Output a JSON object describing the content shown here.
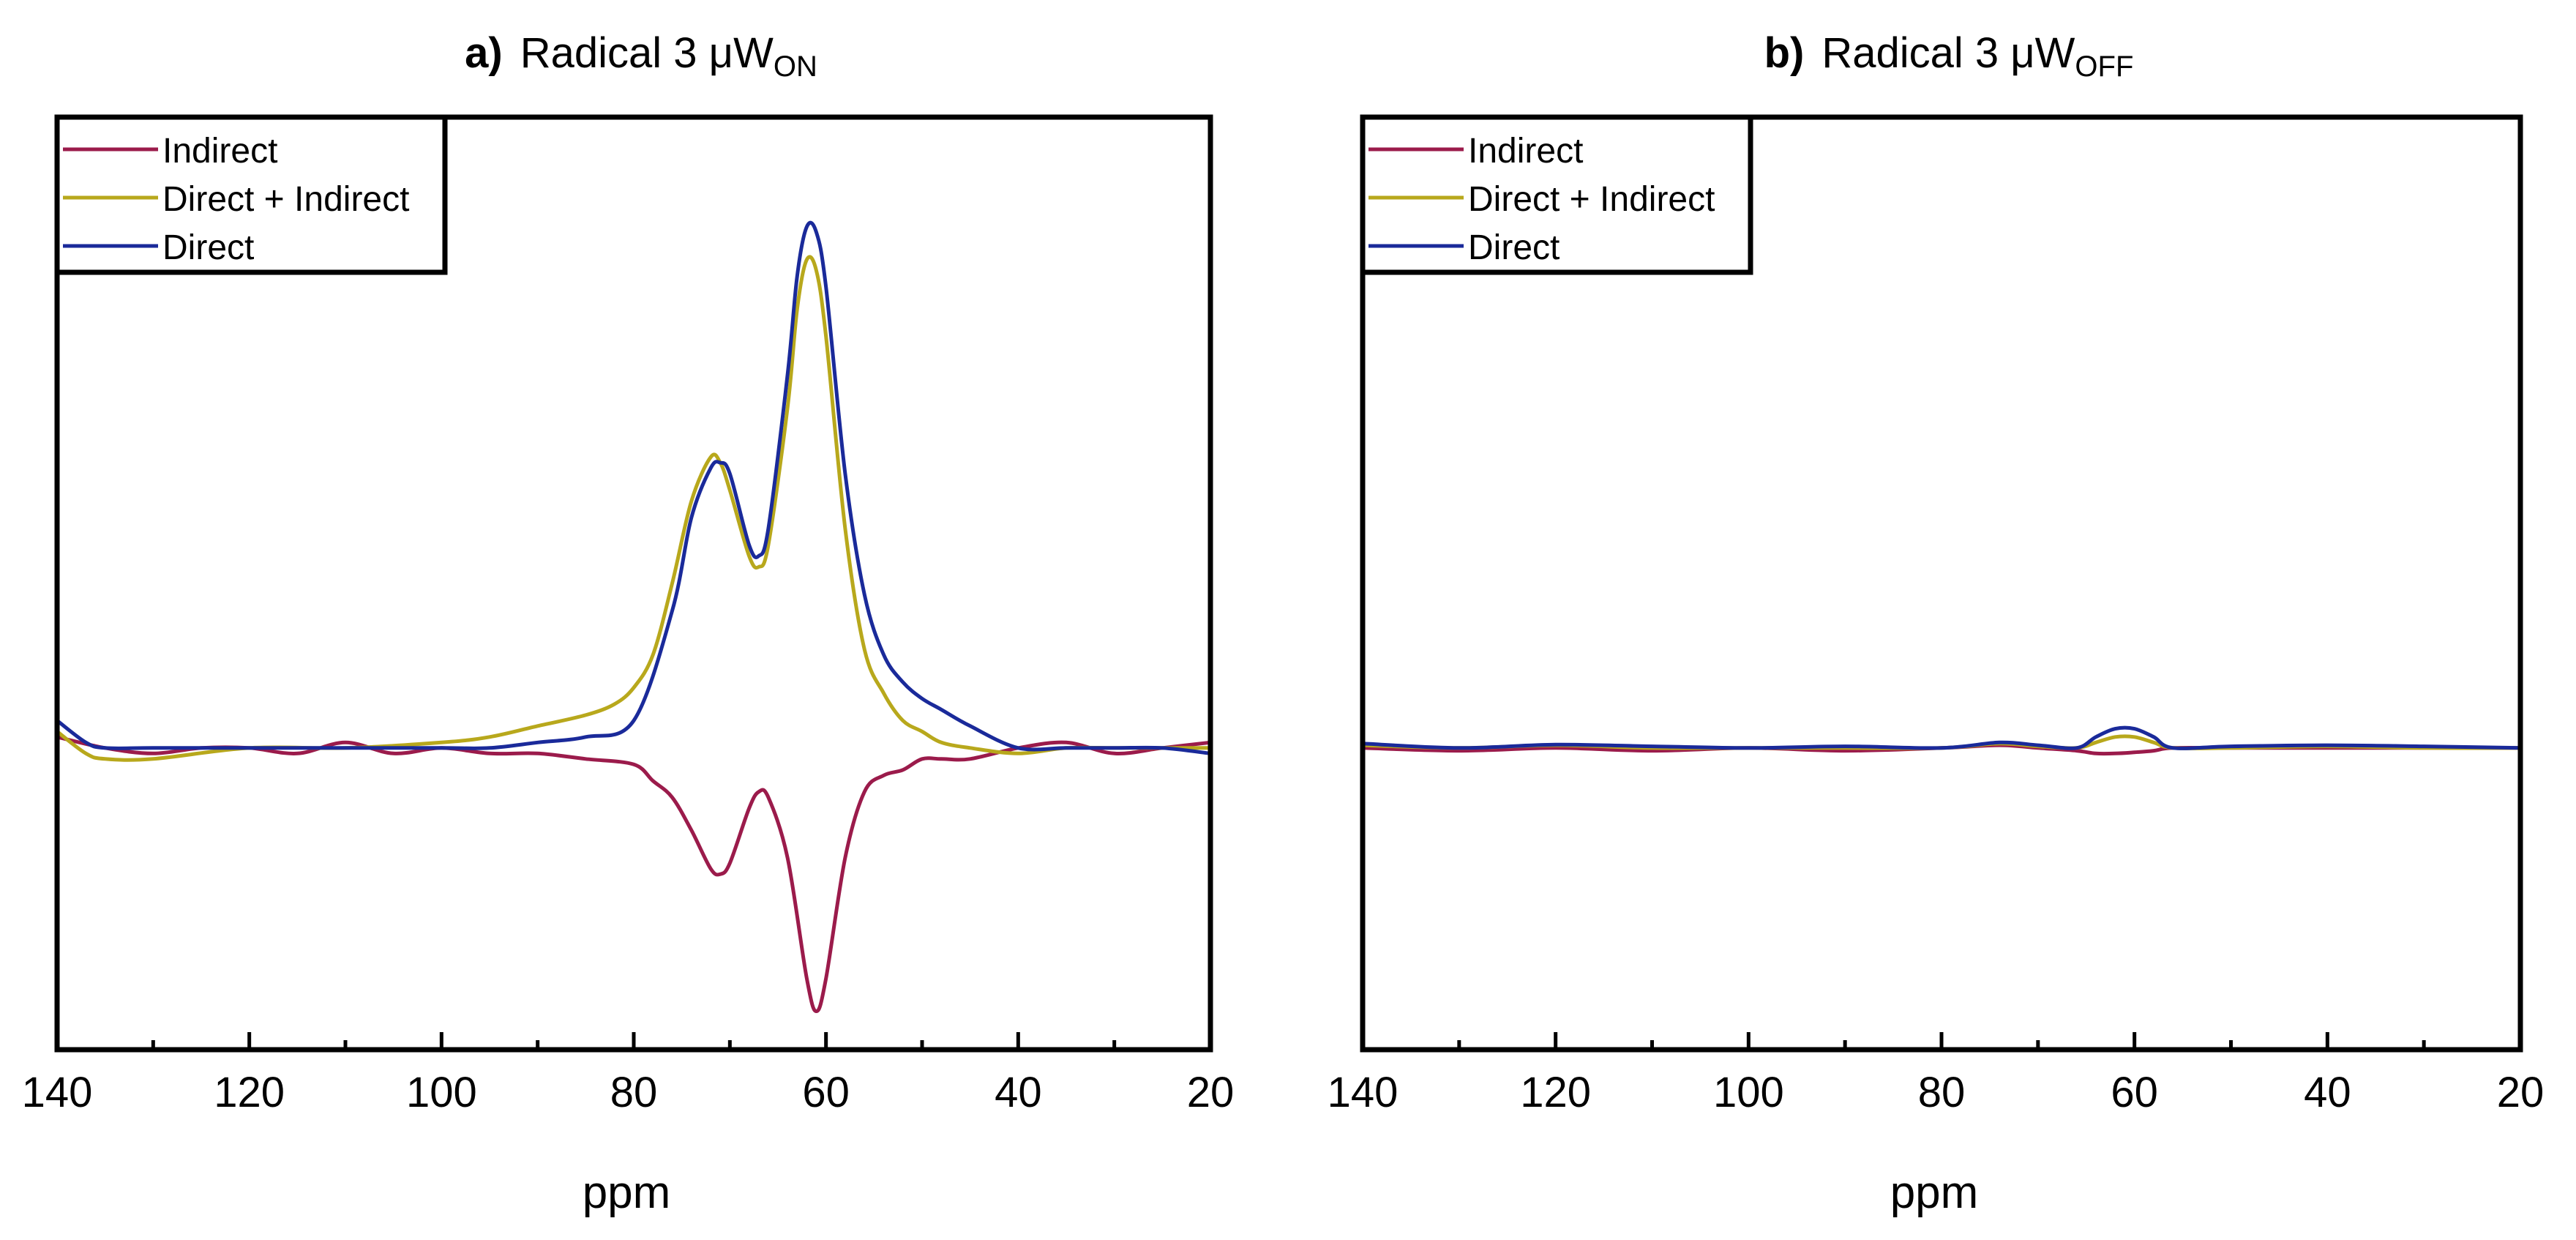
{
  "colors": {
    "indirect": "#9b1b4b",
    "direct_plus_indirect": "#b8a81c",
    "direct": "#1a2a9a",
    "axis": "#000000"
  },
  "chart_data": [
    {
      "type": "line",
      "title_prefix": "a)",
      "title_main": "Radical 3 μW",
      "title_sub": "ON",
      "xlabel": "ppm",
      "ylabel": "",
      "xlim": [
        140,
        20
      ],
      "ylim": [
        -0.55,
        1.15
      ],
      "x_reversed": true,
      "xticks": [
        140,
        120,
        100,
        80,
        60,
        40,
        20
      ],
      "xtick_labels": [
        "140",
        "120",
        "100",
        "80",
        "60",
        "40",
        "20"
      ],
      "grid": false,
      "legend_position": "top-left",
      "series": [
        {
          "name": "Indirect",
          "color_key": "indirect",
          "x": [
            140,
            135,
            130,
            125,
            120,
            115,
            110,
            105,
            100,
            95,
            90,
            85,
            80,
            78,
            76,
            74,
            72,
            71,
            70,
            68,
            67,
            66,
            64,
            62,
            61,
            60,
            58,
            56,
            54,
            52,
            50,
            48,
            45,
            40,
            35,
            30,
            25,
            20
          ],
          "y": [
            0.02,
            0.0,
            -0.01,
            0.0,
            0.0,
            -0.01,
            0.01,
            -0.01,
            0.0,
            -0.01,
            -0.01,
            -0.02,
            -0.03,
            -0.06,
            -0.09,
            -0.15,
            -0.22,
            -0.23,
            -0.21,
            -0.11,
            -0.08,
            -0.09,
            -0.2,
            -0.42,
            -0.48,
            -0.42,
            -0.2,
            -0.08,
            -0.05,
            -0.04,
            -0.02,
            -0.02,
            -0.02,
            0.0,
            0.01,
            -0.01,
            0.0,
            0.01
          ]
        },
        {
          "name": "Direct + Indirect",
          "color_key": "direct_plus_indirect",
          "x": [
            140,
            137,
            135,
            130,
            120,
            110,
            100,
            95,
            90,
            85,
            82,
            80,
            78,
            76,
            74,
            72,
            71,
            70,
            68,
            67,
            66,
            64,
            63,
            62,
            61,
            60,
            58,
            56,
            54,
            52,
            50,
            48,
            45,
            40,
            35,
            30,
            25,
            20
          ],
          "y": [
            0.03,
            -0.01,
            -0.02,
            -0.02,
            0.0,
            0.0,
            0.01,
            0.02,
            0.04,
            0.06,
            0.08,
            0.11,
            0.17,
            0.3,
            0.45,
            0.53,
            0.52,
            0.47,
            0.35,
            0.33,
            0.37,
            0.62,
            0.8,
            0.89,
            0.87,
            0.75,
            0.4,
            0.18,
            0.1,
            0.05,
            0.03,
            0.01,
            0.0,
            -0.01,
            0.0,
            0.0,
            0.0,
            0.0
          ]
        },
        {
          "name": "Direct",
          "color_key": "direct",
          "x": [
            140,
            137,
            135,
            130,
            120,
            110,
            100,
            95,
            90,
            85,
            80,
            76,
            74,
            72,
            71,
            70,
            68,
            67,
            66,
            64,
            63,
            62,
            61,
            60,
            58,
            56,
            54,
            52,
            50,
            48,
            45,
            40,
            35,
            30,
            25,
            20
          ],
          "y": [
            0.05,
            0.01,
            0.0,
            0.0,
            0.0,
            0.0,
            0.0,
            0.0,
            0.01,
            0.02,
            0.05,
            0.25,
            0.42,
            0.51,
            0.52,
            0.5,
            0.37,
            0.35,
            0.4,
            0.68,
            0.86,
            0.95,
            0.94,
            0.84,
            0.5,
            0.28,
            0.17,
            0.12,
            0.09,
            0.07,
            0.04,
            0.0,
            0.0,
            0.0,
            0.0,
            -0.01
          ]
        }
      ]
    },
    {
      "type": "line",
      "title_prefix": "b)",
      "title_main": "Radical 3 μW",
      "title_sub": "OFF",
      "xlabel": "ppm",
      "ylabel": "",
      "xlim": [
        140,
        20
      ],
      "ylim": [
        -0.55,
        1.15
      ],
      "x_reversed": true,
      "xticks": [
        140,
        120,
        100,
        80,
        60,
        40,
        20
      ],
      "xtick_labels": [
        "140",
        "120",
        "100",
        "80",
        "60",
        "40",
        "20"
      ],
      "grid": false,
      "legend_position": "top-left",
      "series": [
        {
          "name": "Indirect",
          "color_key": "indirect",
          "x": [
            140,
            130,
            120,
            110,
            100,
            90,
            80,
            74,
            70,
            66,
            64,
            62,
            60,
            58,
            56,
            50,
            40,
            30,
            20
          ],
          "y": [
            0.0,
            -0.005,
            0.0,
            -0.005,
            0.0,
            -0.005,
            0.0,
            0.005,
            0.0,
            -0.005,
            -0.01,
            -0.01,
            -0.008,
            -0.005,
            0.0,
            0.0,
            0.0,
            0.0,
            0.0
          ]
        },
        {
          "name": "Direct + Indirect",
          "color_key": "direct_plus_indirect",
          "x": [
            140,
            130,
            120,
            110,
            100,
            90,
            80,
            74,
            70,
            66,
            64,
            62,
            60,
            58,
            56,
            50,
            40,
            30,
            20
          ],
          "y": [
            0.005,
            0.0,
            0.005,
            0.0,
            0.0,
            0.0,
            0.0,
            0.008,
            0.003,
            0.0,
            0.01,
            0.02,
            0.02,
            0.01,
            0.0,
            0.0,
            0.003,
            0.0,
            0.0
          ]
        },
        {
          "name": "Direct",
          "color_key": "direct",
          "x": [
            140,
            130,
            120,
            110,
            100,
            90,
            80,
            74,
            70,
            66,
            64,
            62,
            60,
            58,
            56,
            50,
            40,
            30,
            20
          ],
          "y": [
            0.008,
            0.0,
            0.006,
            0.003,
            0.0,
            0.003,
            0.0,
            0.01,
            0.005,
            0.0,
            0.02,
            0.035,
            0.035,
            0.02,
            0.0,
            0.003,
            0.005,
            0.003,
            0.0
          ]
        }
      ]
    }
  ]
}
